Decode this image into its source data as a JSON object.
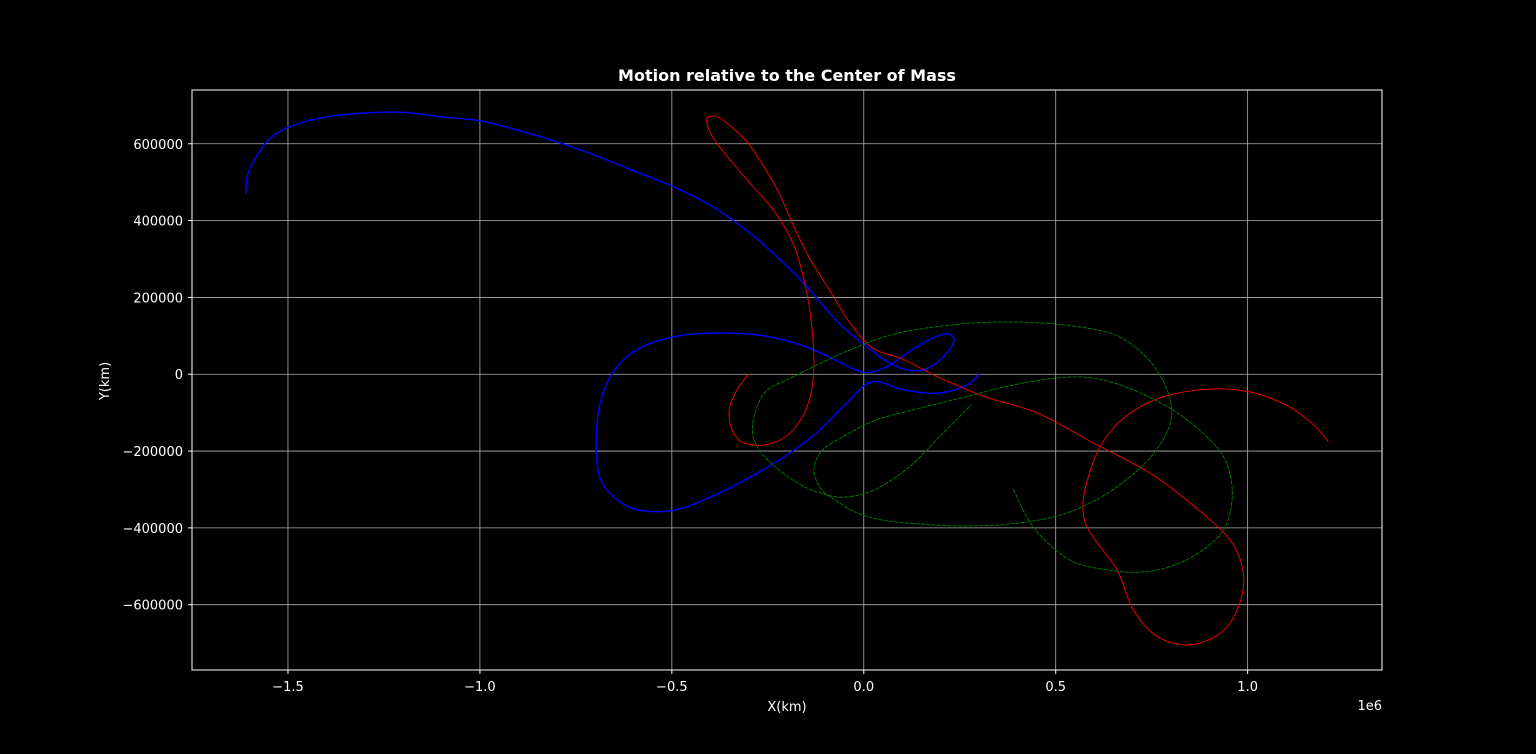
{
  "chart_data": {
    "type": "line",
    "title": "Motion relative to the Center of Mass",
    "xlabel": "X(km)",
    "ylabel": "Y(km)",
    "x_offset_label": "1e6",
    "xlim": [
      -1750000,
      1350000
    ],
    "ylim": [
      -770000,
      740000
    ],
    "grid": true,
    "background": "#000000",
    "foreground": "#ffffff",
    "grid_color": "#b0b0b0",
    "x_ticks": [
      {
        "value": -1500000,
        "label": "−1.5"
      },
      {
        "value": -1000000,
        "label": "−1.0"
      },
      {
        "value": -500000,
        "label": "−0.5"
      },
      {
        "value": 0,
        "label": "0.0"
      },
      {
        "value": 500000,
        "label": "0.5"
      },
      {
        "value": 1000000,
        "label": "1.0"
      }
    ],
    "y_ticks": [
      {
        "value": 600000,
        "label": "600000"
      },
      {
        "value": 400000,
        "label": "400000"
      },
      {
        "value": 200000,
        "label": "200000"
      },
      {
        "value": 0,
        "label": "0"
      },
      {
        "value": -200000,
        "label": "−200000"
      },
      {
        "value": -400000,
        "label": "−400000"
      },
      {
        "value": -600000,
        "label": "−600000"
      }
    ],
    "series": [
      {
        "color": "#0000ff",
        "dash": "solid",
        "x": [
          -1610000,
          -1605000,
          -1580000,
          -1540000,
          -1480000,
          -1400000,
          -1300000,
          -1200000,
          -1100000,
          -1000000,
          -900000,
          -800000,
          -700000,
          -600000,
          -500000,
          -400000,
          -300000,
          -220000,
          -150000,
          -90000,
          -40000,
          10000,
          50000,
          100000,
          150000,
          190000,
          220000,
          235000,
          230000,
          210000,
          170000,
          120000,
          60000,
          0,
          -80000,
          -160000,
          -260000,
          -370000,
          -480000,
          -580000,
          -650000,
          -690000,
          -695000,
          -670000,
          -600000,
          -500000,
          -400000,
          -300000,
          -200000,
          -120000,
          -50000,
          20000,
          100000,
          180000,
          240000,
          280000,
          300000
        ],
        "y": [
          470000,
          520000,
          570000,
          620000,
          650000,
          670000,
          680000,
          682000,
          670000,
          660000,
          635000,
          605000,
          570000,
          530000,
          490000,
          440000,
          370000,
          300000,
          230000,
          160000,
          110000,
          70000,
          40000,
          15000,
          10000,
          30000,
          60000,
          85000,
          100000,
          105000,
          90000,
          60000,
          20000,
          5000,
          40000,
          75000,
          100000,
          107000,
          100000,
          70000,
          10000,
          -90000,
          -230000,
          -300000,
          -350000,
          -355000,
          -320000,
          -270000,
          -210000,
          -150000,
          -80000,
          -20000,
          -40000,
          -50000,
          -40000,
          -20000,
          0
        ]
      },
      {
        "color": "#ff0000",
        "dash": "solid",
        "x": [
          -300000,
          -330000,
          -350000,
          -345000,
          -320000,
          -280000,
          -240000,
          -200000,
          -165000,
          -140000,
          -130000,
          -135000,
          -150000,
          -180000,
          -230000,
          -290000,
          -350000,
          -395000,
          -410000,
          -405000,
          -380000,
          -340000,
          -300000,
          -260000,
          -220000,
          -180000,
          -140000,
          -90000,
          -40000,
          20000,
          100000,
          200000,
          320000,
          450000,
          600000,
          750000,
          880000,
          960000,
          990000,
          970000,
          920000,
          840000,
          760000,
          700000,
          660000,
          575000,
          590000,
          650000,
          750000,
          880000,
          1000000,
          1100000,
          1170000,
          1210000
        ],
        "y": [
          0,
          -40000,
          -90000,
          -140000,
          -175000,
          -185000,
          -180000,
          -160000,
          -120000,
          -60000,
          20000,
          120000,
          220000,
          330000,
          420000,
          490000,
          560000,
          620000,
          660000,
          670000,
          670000,
          640000,
          600000,
          540000,
          470000,
          380000,
          300000,
          220000,
          140000,
          70000,
          40000,
          -10000,
          -60000,
          -100000,
          -180000,
          -260000,
          -360000,
          -440000,
          -530000,
          -620000,
          -680000,
          -705000,
          -680000,
          -610000,
          -510000,
          -380000,
          -250000,
          -140000,
          -70000,
          -40000,
          -45000,
          -80000,
          -130000,
          -175000
        ]
      },
      {
        "color": "#008000",
        "dash": "dashed",
        "x": [
          390000,
          430000,
          480000,
          550000,
          640000,
          720000,
          800000,
          880000,
          940000,
          960000,
          940000,
          880000,
          800000,
          700000,
          600000,
          500000,
          380000,
          260000,
          140000,
          30000,
          -50000,
          -110000,
          -130000,
          -110000,
          -70000,
          -20000,
          50000,
          150000,
          260000,
          380000,
          500000,
          600000,
          690000,
          760000,
          800000,
          790000,
          740000,
          660000,
          550000,
          430000,
          310000,
          200000,
          80000,
          -20000,
          -110000,
          -190000,
          -250000,
          -280000,
          -290000,
          -270000,
          -220000,
          -160000,
          -110000,
          -50000,
          30000,
          120000,
          200000,
          280000
        ],
        "y": [
          -300000,
          -380000,
          -440000,
          -490000,
          -510000,
          -515000,
          -500000,
          -460000,
          -400000,
          -310000,
          -220000,
          -150000,
          -90000,
          -40000,
          -10000,
          -10000,
          -30000,
          -60000,
          -90000,
          -120000,
          -160000,
          -200000,
          -250000,
          -300000,
          -330000,
          -360000,
          -380000,
          -390000,
          -395000,
          -390000,
          -370000,
          -330000,
          -270000,
          -200000,
          -120000,
          -40000,
          40000,
          100000,
          125000,
          135000,
          135000,
          125000,
          105000,
          70000,
          30000,
          -10000,
          -40000,
          -90000,
          -150000,
          -200000,
          -250000,
          -290000,
          -310000,
          -320000,
          -300000,
          -240000,
          -160000,
          -80000
        ]
      }
    ]
  }
}
